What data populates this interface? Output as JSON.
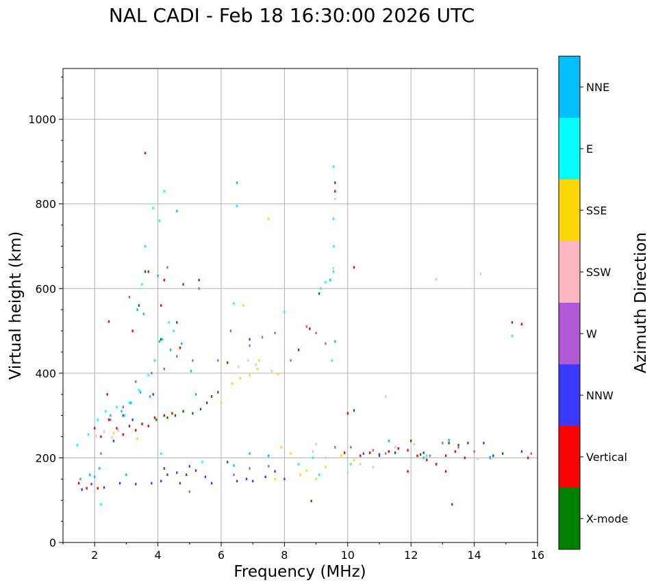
{
  "chart_data": {
    "type": "scatter",
    "title": "NAL CADI - Feb 18 16:30:00 2026 UTC",
    "xlabel": "Frequency (MHz)",
    "ylabel": "Virtual height (km)",
    "xlim": [
      1,
      16
    ],
    "ylim": [
      0,
      1120
    ],
    "xticks": [
      2,
      4,
      6,
      8,
      10,
      12,
      14,
      16
    ],
    "yticks": [
      0,
      200,
      400,
      600,
      800,
      1000
    ],
    "grid": true,
    "marker_width_mhz": 0.05,
    "marker_height_km": 6,
    "colorbar": {
      "title": "Azimuth Direction",
      "categories": [
        "X-mode",
        "Vertical",
        "NNW",
        "W",
        "SSW",
        "SSE",
        "E",
        "NNE"
      ],
      "colors": [
        "#008000",
        "#ff0000",
        "#3a3aff",
        "#b05ad6",
        "#ffb6c1",
        "#ffd700",
        "#00ffff",
        "#00bfff"
      ]
    },
    "series": [
      {
        "name": "X-mode",
        "points": [
          [
            3.95,
            290
          ],
          [
            4.3,
            295
          ],
          [
            4.55,
            300
          ],
          [
            4.8,
            310
          ],
          [
            5.1,
            305
          ],
          [
            5.35,
            315
          ],
          [
            5.55,
            330
          ],
          [
            5.7,
            345
          ],
          [
            5.9,
            355
          ],
          [
            6.2,
            425
          ],
          [
            8.45,
            455
          ],
          [
            8.85,
            98
          ],
          [
            9.1,
            588
          ],
          [
            9.6,
            850
          ],
          [
            10.2,
            312
          ],
          [
            11.5,
            212
          ],
          [
            12.3,
            208
          ],
          [
            13.2,
            235
          ],
          [
            14.6,
            205
          ],
          [
            15.2,
            520
          ],
          [
            4.1,
            480
          ],
          [
            4.6,
            520
          ],
          [
            3.6,
            640
          ],
          [
            5.3,
            620
          ],
          [
            2.6,
            240
          ],
          [
            3.4,
            560
          ],
          [
            12.0,
            240
          ],
          [
            13.5,
            230
          ],
          [
            14.9,
            210
          ]
        ]
      },
      {
        "name": "Vertical",
        "points": [
          [
            1.5,
            140
          ],
          [
            1.75,
            128
          ],
          [
            2.0,
            270
          ],
          [
            2.2,
            250
          ],
          [
            2.45,
            290
          ],
          [
            2.7,
            270
          ],
          [
            2.9,
            255
          ],
          [
            3.1,
            275
          ],
          [
            3.3,
            265
          ],
          [
            3.5,
            280
          ],
          [
            3.7,
            275
          ],
          [
            3.9,
            295
          ],
          [
            4.2,
            300
          ],
          [
            4.45,
            305
          ],
          [
            2.45,
            522
          ],
          [
            3.6,
            920
          ],
          [
            3.85,
            350
          ],
          [
            4.1,
            560
          ],
          [
            3.7,
            640
          ],
          [
            4.2,
            620
          ],
          [
            9.9,
            212
          ],
          [
            10.0,
            305
          ],
          [
            10.2,
            650
          ],
          [
            10.4,
            205
          ],
          [
            10.7,
            212
          ],
          [
            11.0,
            208
          ],
          [
            11.3,
            215
          ],
          [
            11.6,
            222
          ],
          [
            11.9,
            218
          ],
          [
            12.2,
            205
          ],
          [
            12.5,
            195
          ],
          [
            12.8,
            185
          ],
          [
            13.1,
            205
          ],
          [
            13.4,
            215
          ],
          [
            13.7,
            200
          ],
          [
            15.7,
            200
          ],
          [
            11.9,
            168
          ],
          [
            13.1,
            168
          ],
          [
            9.6,
            830
          ],
          [
            15.5,
            516
          ],
          [
            2.1,
            128
          ],
          [
            3.2,
            500
          ],
          [
            8.8,
            505
          ],
          [
            2.4,
            350
          ],
          [
            4.7,
            460
          ]
        ]
      },
      {
        "name": "NNW",
        "points": [
          [
            1.6,
            125
          ],
          [
            1.9,
            138
          ],
          [
            2.3,
            130
          ],
          [
            2.8,
            140
          ],
          [
            3.3,
            138
          ],
          [
            3.8,
            140
          ],
          [
            4.1,
            145
          ],
          [
            4.3,
            160
          ],
          [
            4.6,
            165
          ],
          [
            4.9,
            160
          ],
          [
            5.2,
            170
          ],
          [
            5.5,
            155
          ],
          [
            4.2,
            175
          ],
          [
            4.7,
            140
          ],
          [
            5.0,
            180
          ],
          [
            6.5,
            145
          ],
          [
            6.8,
            150
          ],
          [
            7.0,
            145
          ],
          [
            7.4,
            155
          ],
          [
            7.7,
            168
          ],
          [
            8.0,
            150
          ],
          [
            10.5,
            210
          ],
          [
            11.0,
            205
          ],
          [
            12.4,
            212
          ],
          [
            13.3,
            90
          ],
          [
            13.8,
            235
          ],
          [
            14.3,
            235
          ],
          [
            15.5,
            215
          ],
          [
            6.9,
            480
          ],
          [
            4.8,
            610
          ],
          [
            3.2,
            290
          ],
          [
            2.9,
            300
          ],
          [
            5.7,
            140
          ],
          [
            6.2,
            190
          ]
        ]
      },
      {
        "name": "W",
        "points": [
          [
            2.5,
            290
          ],
          [
            2.9,
            320
          ],
          [
            3.3,
            380
          ],
          [
            3.8,
            400
          ],
          [
            4.2,
            410
          ],
          [
            4.6,
            440
          ],
          [
            5.1,
            430
          ],
          [
            5.3,
            600
          ],
          [
            6.3,
            500
          ],
          [
            6.9,
            465
          ],
          [
            7.3,
            485
          ],
          [
            7.7,
            495
          ],
          [
            8.2,
            430
          ],
          [
            8.7,
            510
          ],
          [
            9.0,
            495
          ],
          [
            9.3,
            470
          ],
          [
            9.6,
            225
          ],
          [
            10.1,
            225
          ],
          [
            10.8,
            218
          ],
          [
            11.2,
            210
          ],
          [
            12.6,
            205
          ],
          [
            13.0,
            235
          ],
          [
            13.5,
            225
          ],
          [
            14.0,
            215
          ],
          [
            14.5,
            200
          ],
          [
            15.8,
            210
          ],
          [
            6.4,
            160
          ],
          [
            6.9,
            175
          ],
          [
            7.5,
            180
          ],
          [
            4.3,
            650
          ],
          [
            3.1,
            580
          ],
          [
            5.0,
            120
          ],
          [
            2.2,
            210
          ],
          [
            5.9,
            430
          ]
        ]
      },
      {
        "name": "SSW",
        "points": [
          [
            2.05,
            252
          ],
          [
            2.3,
            262
          ],
          [
            2.55,
            248
          ],
          [
            2.75,
            265
          ],
          [
            6.55,
            415
          ],
          [
            6.85,
            430
          ],
          [
            7.1,
            420
          ],
          [
            9.0,
            232
          ],
          [
            9.55,
            648
          ],
          [
            9.6,
            812
          ],
          [
            10.4,
            185
          ],
          [
            10.8,
            178
          ],
          [
            11.2,
            345
          ],
          [
            11.5,
            225
          ],
          [
            12.1,
            232
          ],
          [
            12.8,
            622
          ],
          [
            14.2,
            635
          ],
          [
            14.1,
            198
          ],
          [
            9.3,
            200
          ],
          [
            8.9,
            215
          ],
          [
            10.0,
            165
          ],
          [
            7.6,
            405
          ]
        ]
      },
      {
        "name": "SSE",
        "points": [
          [
            2.6,
            258
          ],
          [
            3.35,
            245
          ],
          [
            6.35,
            375
          ],
          [
            6.6,
            388
          ],
          [
            6.9,
            395
          ],
          [
            7.15,
            410
          ],
          [
            7.5,
            765
          ],
          [
            7.8,
            398
          ],
          [
            7.9,
            225
          ],
          [
            8.2,
            210
          ],
          [
            8.7,
            170
          ],
          [
            9.0,
            150
          ],
          [
            9.3,
            178
          ],
          [
            9.8,
            205
          ],
          [
            10.2,
            195
          ],
          [
            6.7,
            560
          ],
          [
            7.2,
            430
          ],
          [
            8.5,
            160
          ],
          [
            6.0,
            330
          ],
          [
            7.7,
            150
          ]
        ]
      },
      {
        "name": "E",
        "points": [
          [
            1.45,
            230
          ],
          [
            1.8,
            255
          ],
          [
            2.1,
            290
          ],
          [
            2.35,
            310
          ],
          [
            2.7,
            320
          ],
          [
            2.95,
            300
          ],
          [
            3.1,
            330
          ],
          [
            3.4,
            360
          ],
          [
            3.7,
            395
          ],
          [
            3.9,
            430
          ],
          [
            4.15,
            480
          ],
          [
            4.35,
            520
          ],
          [
            4.5,
            500
          ],
          [
            3.6,
            700
          ],
          [
            3.5,
            610
          ],
          [
            3.85,
            790
          ],
          [
            4.05,
            760
          ],
          [
            4.2,
            830
          ],
          [
            6.5,
            795
          ],
          [
            6.4,
            565
          ],
          [
            9.55,
            888
          ],
          [
            9.55,
            765
          ],
          [
            9.55,
            700
          ],
          [
            9.55,
            640
          ],
          [
            9.5,
            430
          ],
          [
            9.3,
            615
          ],
          [
            9.15,
            600
          ],
          [
            8.9,
            200
          ],
          [
            8.45,
            185
          ],
          [
            10.1,
            185
          ],
          [
            12.5,
            205
          ],
          [
            15.2,
            488
          ],
          [
            7.5,
            205
          ],
          [
            2.2,
            90
          ],
          [
            8.0,
            545
          ],
          [
            5.4,
            190
          ],
          [
            4.1,
            210
          ],
          [
            9.1,
            160
          ]
        ]
      },
      {
        "name": "NNE",
        "points": [
          [
            1.55,
            150
          ],
          [
            1.85,
            160
          ],
          [
            2.15,
            175
          ],
          [
            2.5,
            300
          ],
          [
            2.85,
            310
          ],
          [
            3.15,
            330
          ],
          [
            3.45,
            355
          ],
          [
            3.75,
            345
          ],
          [
            4.05,
            475
          ],
          [
            4.4,
            455
          ],
          [
            4.75,
            470
          ],
          [
            5.05,
            405
          ],
          [
            3.35,
            550
          ],
          [
            3.55,
            540
          ],
          [
            4.6,
            783
          ],
          [
            6.5,
            850
          ],
          [
            6.9,
            210
          ],
          [
            7.5,
            205
          ],
          [
            9.45,
            620
          ],
          [
            9.6,
            475
          ],
          [
            11.3,
            240
          ],
          [
            12.4,
            200
          ],
          [
            13.2,
            242
          ],
          [
            14.5,
            201
          ],
          [
            2.0,
            155
          ],
          [
            3.0,
            160
          ],
          [
            5.2,
            350
          ],
          [
            4.0,
            630
          ],
          [
            6.4,
            182
          ]
        ]
      }
    ]
  }
}
